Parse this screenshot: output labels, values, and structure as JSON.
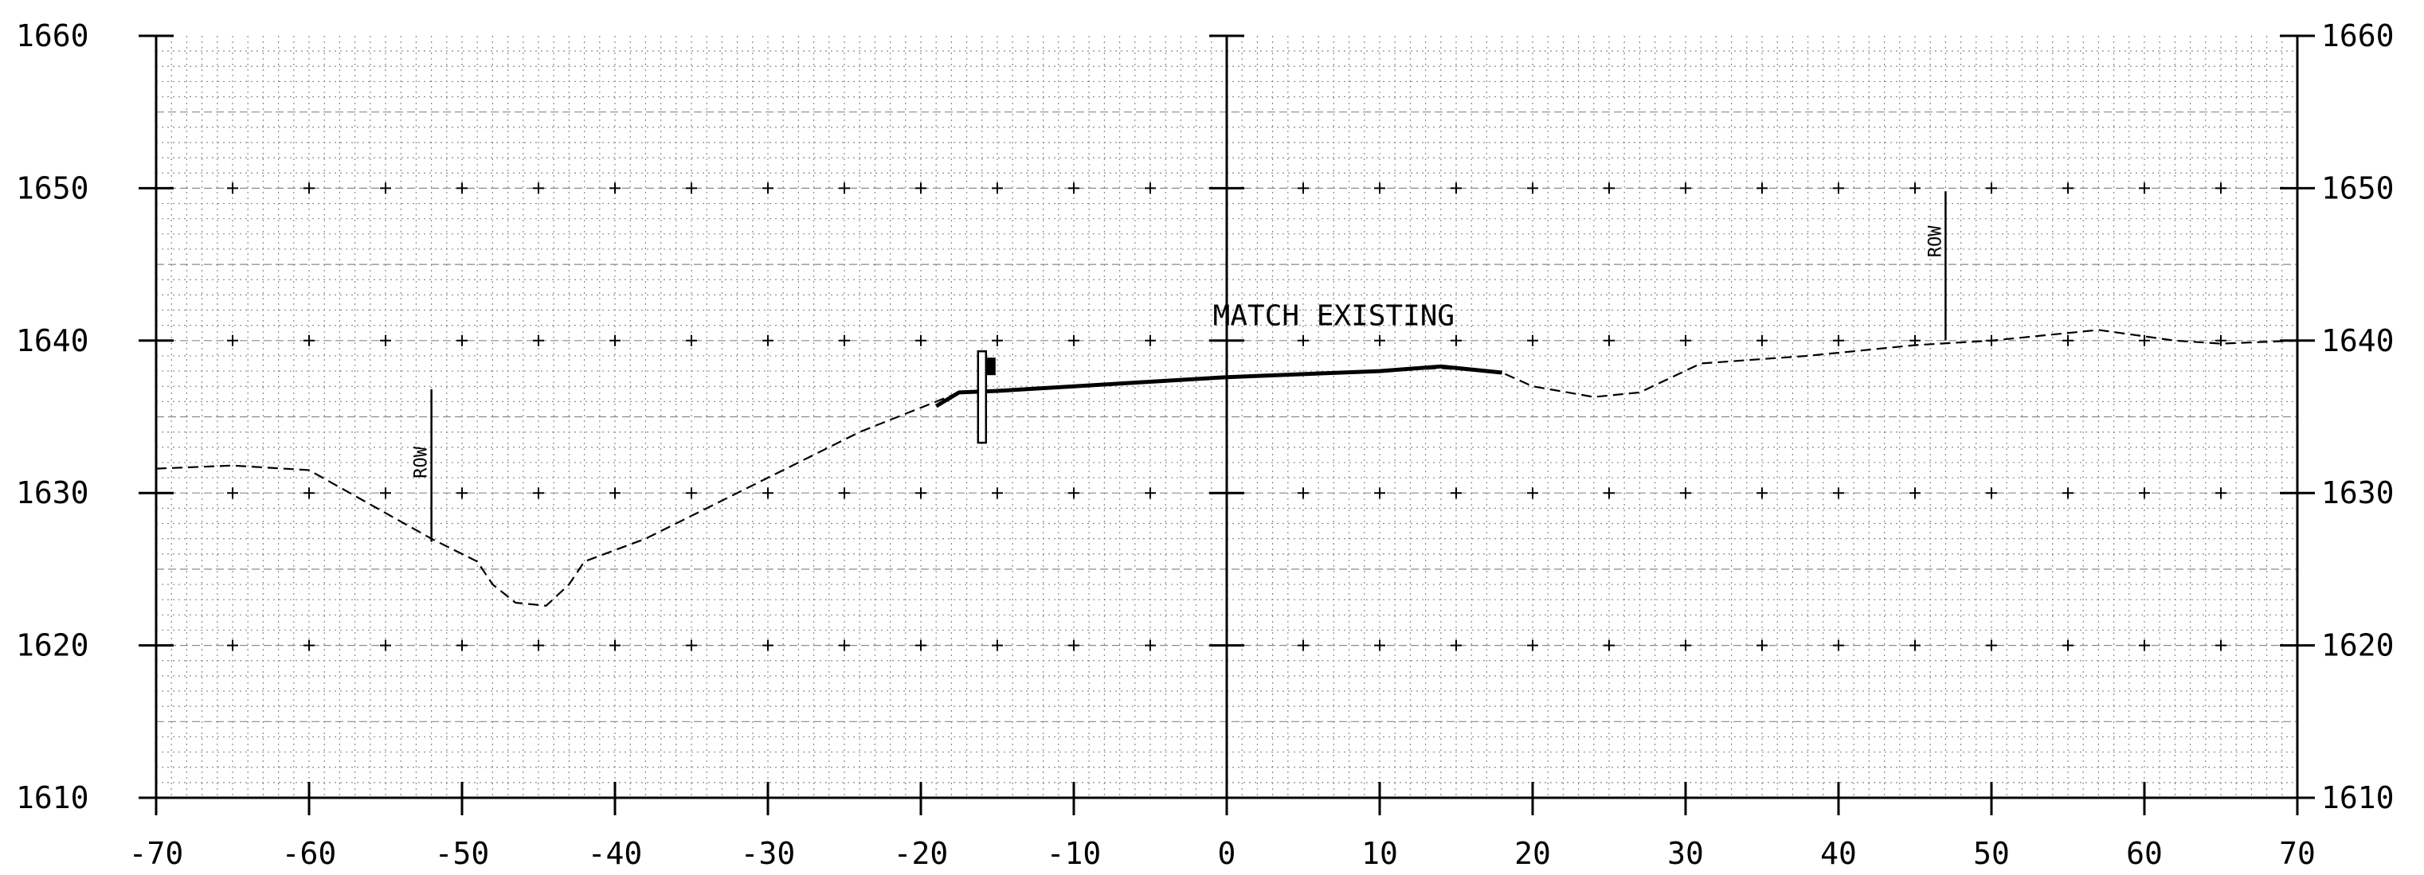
{
  "chart_data": {
    "type": "line",
    "xlim": [
      -70,
      70
    ],
    "ylim": [
      1610,
      1660
    ],
    "x_ticks": [
      -70,
      -60,
      -50,
      -40,
      -30,
      -20,
      -10,
      0,
      10,
      20,
      30,
      40,
      50,
      60,
      70
    ],
    "x_tick_labels": [
      "-70",
      "-60",
      "-50",
      "-40",
      "-30",
      "-20",
      "-10",
      "0",
      "10",
      "20",
      "30",
      "40",
      "50",
      "60",
      "70"
    ],
    "y_ticks": [
      1610,
      1620,
      1630,
      1640,
      1650,
      1660
    ],
    "y_tick_labels": [
      "1610",
      "1620",
      "1630",
      "1640",
      "1650",
      "1660"
    ],
    "grid": true,
    "series": [
      {
        "style": "dashed",
        "points": [
          [
            -70,
            1631.6
          ],
          [
            -65,
            1631.8
          ],
          [
            -60,
            1631.5
          ],
          [
            -52,
            1627.0
          ],
          [
            -49,
            1625.5
          ],
          [
            -48,
            1624.0
          ],
          [
            -46.5,
            1622.8
          ],
          [
            -44.5,
            1622.6
          ],
          [
            -43,
            1624.0
          ],
          [
            -42,
            1625.5
          ],
          [
            -38,
            1627.0
          ],
          [
            -32,
            1630.0
          ],
          [
            -24,
            1634.0
          ],
          [
            -19,
            1636.0
          ],
          [
            -17.5,
            1636.6
          ],
          [
            -15,
            1636.7
          ],
          [
            -12,
            1636.9
          ],
          [
            0,
            1637.6
          ],
          [
            10,
            1638.0
          ],
          [
            14,
            1638.2
          ],
          [
            18,
            1637.9
          ],
          [
            20,
            1637.0
          ],
          [
            24,
            1636.3
          ],
          [
            27,
            1636.6
          ],
          [
            31,
            1638.5
          ],
          [
            38,
            1639.0
          ],
          [
            45,
            1639.7
          ],
          [
            50,
            1640.0
          ],
          [
            57,
            1640.7
          ],
          [
            62,
            1640.0
          ],
          [
            65,
            1639.8
          ],
          [
            70,
            1640.0
          ]
        ]
      },
      {
        "style": "solid",
        "points": [
          [
            -19,
            1635.7
          ],
          [
            -17.5,
            1636.6
          ],
          [
            -15,
            1636.7
          ],
          [
            -10,
            1637.0
          ],
          [
            0,
            1637.6
          ],
          [
            10,
            1638.0
          ],
          [
            14,
            1638.3
          ],
          [
            18,
            1637.9
          ]
        ]
      }
    ],
    "annotations": [
      {
        "text": "MATCH EXISTING",
        "x": 7,
        "y": 1641
      },
      {
        "text": "ROW",
        "x": -52,
        "y": 1632,
        "line_from": 1626.8,
        "line_to": 1636.8
      },
      {
        "text": "ROW",
        "x": 47,
        "y": 1646.5,
        "line_from": 1640.0,
        "line_to": 1649.8
      }
    ],
    "marker": {
      "name": "structure",
      "x": -16,
      "y_bottom": 1633.3,
      "y_top": 1639.3
    }
  }
}
